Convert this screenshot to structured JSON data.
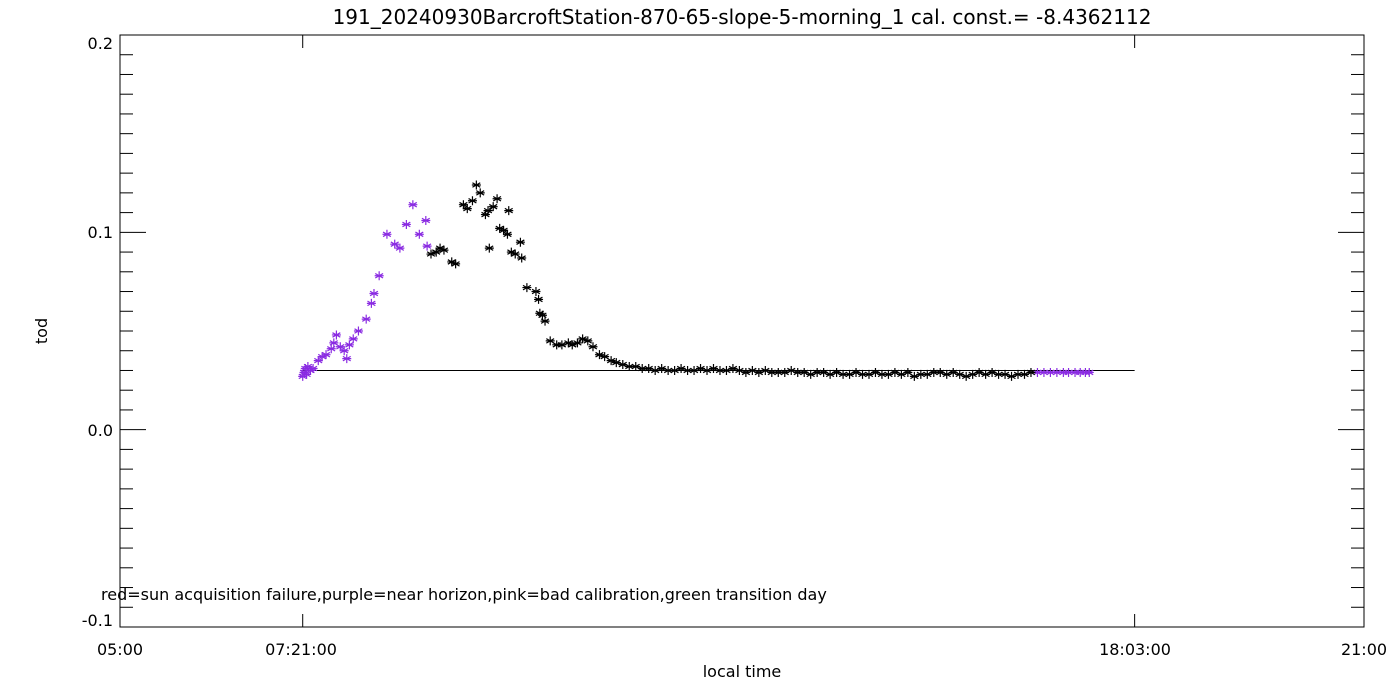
{
  "chart_data": {
    "type": "scatter",
    "title": "191_20240930BarcroftStation-870-65-slope-5-morning_1 cal. const.= -8.4362112",
    "xlabel": "local time",
    "ylabel": "tod",
    "xlim": [
      "05:00",
      "21:00"
    ],
    "ylim": [
      -0.1,
      0.2
    ],
    "x_ticks": [
      "05:00",
      "07:21:00",
      "18:03:00",
      "21:00"
    ],
    "y_ticks": [
      "-0.1",
      "0.0",
      "0.1",
      "0.2"
    ],
    "marker": "asterisk",
    "colors": {
      "normal": "#000000",
      "near_horizon": "#8a2be2",
      "reference_line": "#000000"
    },
    "note": "red=sun acquisition failure,purple=near horizon,pink=bad calibration,green transition day",
    "reference_line": {
      "y": 0.03,
      "x": [
        "07:21",
        "18:03"
      ]
    },
    "series": [
      {
        "name": "near horizon",
        "color": "#8a2be2",
        "points": [
          [
            "07:21",
            0.027
          ],
          [
            "07:22",
            0.029
          ],
          [
            "07:23",
            0.031
          ],
          [
            "07:24",
            0.028
          ],
          [
            "07:25",
            0.032
          ],
          [
            "07:27",
            0.03
          ],
          [
            "07:29",
            0.031
          ],
          [
            "07:33",
            0.035
          ],
          [
            "07:36",
            0.037
          ],
          [
            "07:39",
            0.038
          ],
          [
            "07:43",
            0.041
          ],
          [
            "07:45",
            0.044
          ],
          [
            "07:47",
            0.048
          ],
          [
            "07:50",
            0.042
          ],
          [
            "07:53",
            0.04
          ],
          [
            "07:55",
            0.036
          ],
          [
            "07:57",
            0.043
          ],
          [
            "08:00",
            0.046
          ],
          [
            "08:04",
            0.05
          ],
          [
            "08:10",
            0.056
          ],
          [
            "08:14",
            0.064
          ],
          [
            "08:16",
            0.069
          ],
          [
            "08:20",
            0.078
          ],
          [
            "08:26",
            0.099
          ],
          [
            "08:32",
            0.094
          ],
          [
            "08:36",
            0.092
          ],
          [
            "08:41",
            0.104
          ],
          [
            "08:46",
            0.114
          ],
          [
            "08:51",
            0.099
          ],
          [
            "08:56",
            0.106
          ],
          [
            "08:57",
            0.093
          ],
          [
            "16:48",
            0.029
          ],
          [
            "16:53",
            0.029
          ],
          [
            "16:58",
            0.029
          ],
          [
            "17:03",
            0.029
          ],
          [
            "17:08",
            0.029
          ],
          [
            "17:12",
            0.029
          ],
          [
            "17:17",
            0.029
          ],
          [
            "17:21",
            0.029
          ],
          [
            "17:25",
            0.029
          ],
          [
            "17:28",
            0.029
          ]
        ]
      },
      {
        "name": "",
        "color": "#000000",
        "points": [
          [
            "09:00",
            0.089
          ],
          [
            "09:04",
            0.09
          ],
          [
            "09:07",
            0.092
          ],
          [
            "09:10",
            0.091
          ],
          [
            "09:16",
            0.085
          ],
          [
            "09:19",
            0.084
          ],
          [
            "09:25",
            0.114
          ],
          [
            "09:28",
            0.112
          ],
          [
            "09:32",
            0.116
          ],
          [
            "09:35",
            0.124
          ],
          [
            "09:38",
            0.12
          ],
          [
            "09:42",
            0.109
          ],
          [
            "09:44",
            0.111
          ],
          [
            "09:45",
            0.092
          ],
          [
            "09:48",
            0.113
          ],
          [
            "09:51",
            0.117
          ],
          [
            "09:53",
            0.102
          ],
          [
            "09:56",
            0.101
          ],
          [
            "09:59",
            0.099
          ],
          [
            "10:00",
            0.111
          ],
          [
            "10:02",
            0.09
          ],
          [
            "10:05",
            0.089
          ],
          [
            "10:09",
            0.095
          ],
          [
            "10:10",
            0.087
          ],
          [
            "10:14",
            0.072
          ],
          [
            "10:21",
            0.07
          ],
          [
            "10:23",
            0.066
          ],
          [
            "10:24",
            0.059
          ],
          [
            "10:26",
            0.058
          ],
          [
            "10:28",
            0.055
          ],
          [
            "10:32",
            0.045
          ],
          [
            "10:37",
            0.043
          ],
          [
            "10:41",
            0.043
          ],
          [
            "10:46",
            0.044
          ],
          [
            "10:49",
            0.043
          ],
          [
            "10:53",
            0.044
          ],
          [
            "10:57",
            0.046
          ],
          [
            "11:01",
            0.045
          ],
          [
            "11:05",
            0.042
          ],
          [
            "11:10",
            0.038
          ],
          [
            "11:14",
            0.037
          ],
          [
            "11:19",
            0.035
          ],
          [
            "11:23",
            0.034
          ],
          [
            "11:28",
            0.033
          ],
          [
            "11:33",
            0.032
          ],
          [
            "11:38",
            0.032
          ],
          [
            "11:43",
            0.031
          ],
          [
            "11:48",
            0.031
          ],
          [
            "11:53",
            0.03
          ],
          [
            "11:58",
            0.031
          ],
          [
            "12:03",
            0.03
          ],
          [
            "12:08",
            0.03
          ],
          [
            "12:13",
            0.031
          ],
          [
            "12:18",
            0.03
          ],
          [
            "12:23",
            0.03
          ],
          [
            "12:28",
            0.031
          ],
          [
            "12:33",
            0.03
          ],
          [
            "12:38",
            0.031
          ],
          [
            "12:43",
            0.03
          ],
          [
            "12:48",
            0.03
          ],
          [
            "12:53",
            0.031
          ],
          [
            "12:58",
            0.03
          ],
          [
            "13:03",
            0.029
          ],
          [
            "13:08",
            0.03
          ],
          [
            "13:13",
            0.029
          ],
          [
            "13:18",
            0.03
          ],
          [
            "13:23",
            0.029
          ],
          [
            "13:28",
            0.029
          ],
          [
            "13:33",
            0.029
          ],
          [
            "13:38",
            0.03
          ],
          [
            "13:43",
            0.029
          ],
          [
            "13:48",
            0.029
          ],
          [
            "13:53",
            0.028
          ],
          [
            "13:58",
            0.029
          ],
          [
            "14:03",
            0.029
          ],
          [
            "14:08",
            0.028
          ],
          [
            "14:13",
            0.029
          ],
          [
            "14:18",
            0.028
          ],
          [
            "14:23",
            0.028
          ],
          [
            "14:28",
            0.029
          ],
          [
            "14:33",
            0.028
          ],
          [
            "14:38",
            0.028
          ],
          [
            "14:43",
            0.029
          ],
          [
            "14:48",
            0.028
          ],
          [
            "14:53",
            0.028
          ],
          [
            "14:58",
            0.029
          ],
          [
            "15:03",
            0.028
          ],
          [
            "15:08",
            0.029
          ],
          [
            "15:13",
            0.027
          ],
          [
            "15:18",
            0.028
          ],
          [
            "15:23",
            0.028
          ],
          [
            "15:28",
            0.029
          ],
          [
            "15:33",
            0.029
          ],
          [
            "15:38",
            0.028
          ],
          [
            "15:43",
            0.029
          ],
          [
            "15:48",
            0.028
          ],
          [
            "15:53",
            0.027
          ],
          [
            "15:58",
            0.028
          ],
          [
            "16:03",
            0.029
          ],
          [
            "16:08",
            0.028
          ],
          [
            "16:13",
            0.029
          ],
          [
            "16:18",
            0.028
          ],
          [
            "16:23",
            0.028
          ],
          [
            "16:28",
            0.027
          ],
          [
            "16:33",
            0.028
          ],
          [
            "16:38",
            0.028
          ],
          [
            "16:43",
            0.029
          ]
        ]
      }
    ]
  }
}
